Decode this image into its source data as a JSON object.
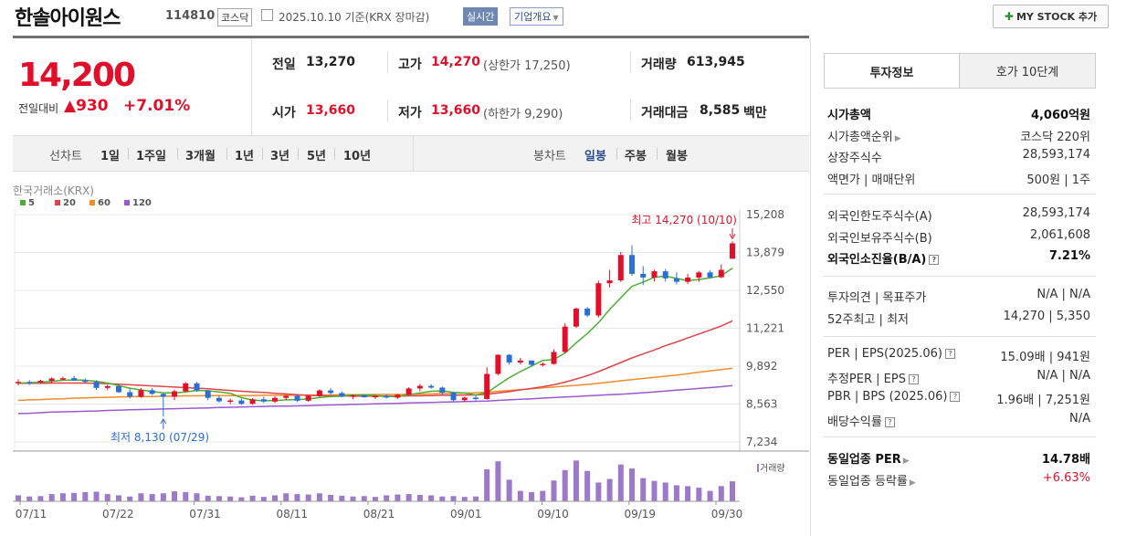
{
  "header": {
    "company": "한솔아이원스",
    "code": "114810",
    "market": "코스닥",
    "date_text": "2025.10.10  기준(KRX 장마감)",
    "realtime": "실시간",
    "overview": "기업개요",
    "mystock": "MY STOCK 추가"
  },
  "price": {
    "current": "14,200",
    "change_label": "전일대비",
    "change_value": "▲930",
    "change_pct": "+7.01%"
  },
  "quote": {
    "prev_label": "전일",
    "prev": "13,270",
    "high_label": "고가",
    "high": "14,270",
    "upper_limit": "(상한가 17,250)",
    "volume_label": "거래량",
    "volume": "613,945",
    "open_label": "시가",
    "open": "13,660",
    "low_label": "저가",
    "low": "13,660",
    "lower_limit": "(하한가 9,290)",
    "amount_label": "거래대금",
    "amount": "8,585",
    "amount_unit": "백만"
  },
  "period_bar": {
    "line_label": "선차트",
    "line_items": [
      "1일",
      "1주일",
      "3개월",
      "1년",
      "3년",
      "5년",
      "10년"
    ],
    "candle_label": "봉차트",
    "candle_items": [
      "일봉",
      "주봉",
      "월봉"
    ],
    "candle_active": "일봉"
  },
  "chart_data": {
    "type": "candlestick",
    "source": "한국거래소(KRX)",
    "legend": [
      "5",
      "20",
      "60",
      "120"
    ],
    "legend_colors": [
      "#4caf32",
      "#e2434b",
      "#f08c2a",
      "#9b59d0"
    ],
    "ylim": [
      7234,
      15208
    ],
    "y_ticks": [
      "15,208",
      "13,879",
      "12,550",
      "11,221",
      "9,892",
      "8,563",
      "7,234"
    ],
    "x_ticks": [
      "07/11",
      "07/22",
      "07/31",
      "08/11",
      "08/21",
      "09/01",
      "09/10",
      "09/19",
      "09/30"
    ],
    "max_label": "최고 14,270 (10/10)",
    "min_label": "최저 8,130 (07/29)",
    "volume_label": "거래량",
    "up_color": "#e0102b",
    "down_color": "#2a6fd6",
    "candles": [
      [
        9290,
        9430,
        9220,
        9340
      ],
      [
        9340,
        9400,
        9230,
        9330
      ],
      [
        9330,
        9420,
        9280,
        9380
      ],
      [
        9380,
        9500,
        9300,
        9460
      ],
      [
        9460,
        9520,
        9400,
        9470
      ],
      [
        9470,
        9550,
        9380,
        9390
      ],
      [
        9390,
        9460,
        9320,
        9340
      ],
      [
        9340,
        9400,
        9060,
        9130
      ],
      [
        9130,
        9240,
        9050,
        9190
      ],
      [
        9190,
        9260,
        8950,
        8980
      ],
      [
        8980,
        9110,
        8760,
        8820
      ],
      [
        8820,
        9130,
        8780,
        9050
      ],
      [
        9050,
        9120,
        8880,
        8920
      ],
      [
        8920,
        8950,
        8130,
        8820
      ],
      [
        8820,
        9070,
        8700,
        9010
      ],
      [
        9010,
        9330,
        8980,
        9290
      ],
      [
        9290,
        9340,
        8990,
        9040
      ],
      [
        9040,
        9050,
        8700,
        8780
      ],
      [
        8780,
        8850,
        8610,
        8660
      ],
      [
        8660,
        8760,
        8560,
        8690
      ],
      [
        8690,
        8760,
        8530,
        8570
      ],
      [
        8570,
        8770,
        8540,
        8730
      ],
      [
        8730,
        8820,
        8600,
        8650
      ],
      [
        8650,
        8830,
        8600,
        8780
      ],
      [
        8780,
        8880,
        8700,
        8850
      ],
      [
        8850,
        8900,
        8630,
        8680
      ],
      [
        8680,
        8880,
        8640,
        8850
      ],
      [
        8850,
        9080,
        8810,
        9040
      ],
      [
        9040,
        9120,
        8900,
        8950
      ],
      [
        8950,
        9000,
        8800,
        8830
      ],
      [
        8830,
        8900,
        8730,
        8870
      ],
      [
        8870,
        8910,
        8790,
        8800
      ],
      [
        8800,
        8880,
        8740,
        8850
      ],
      [
        8850,
        8900,
        8760,
        8790
      ],
      [
        8790,
        8920,
        8740,
        8890
      ],
      [
        8890,
        9150,
        8850,
        9110
      ],
      [
        9110,
        9270,
        9010,
        9200
      ],
      [
        9200,
        9260,
        9100,
        9140
      ],
      [
        9140,
        9180,
        8880,
        8960
      ],
      [
        8960,
        9000,
        8650,
        8700
      ],
      [
        8700,
        8820,
        8640,
        8790
      ],
      [
        8790,
        8850,
        8690,
        8740
      ],
      [
        8740,
        9850,
        8720,
        9620
      ],
      [
        9620,
        10310,
        9580,
        10290
      ],
      [
        10290,
        10310,
        9940,
        10020
      ],
      [
        10020,
        10180,
        9950,
        10090
      ],
      [
        10090,
        10100,
        9880,
        9940
      ],
      [
        9940,
        10020,
        9880,
        9970
      ],
      [
        9970,
        10480,
        9950,
        10390
      ],
      [
        10390,
        11400,
        10340,
        11280
      ],
      [
        11280,
        11950,
        11230,
        11910
      ],
      [
        11910,
        11970,
        11620,
        11670
      ],
      [
        11670,
        12890,
        11600,
        12800
      ],
      [
        12800,
        13270,
        12650,
        12900
      ],
      [
        12900,
        13900,
        12840,
        13790
      ],
      [
        13790,
        14130,
        13060,
        13130
      ],
      [
        13130,
        13400,
        12730,
        13000
      ],
      [
        13000,
        13280,
        12860,
        13220
      ],
      [
        13220,
        13300,
        12860,
        12970
      ],
      [
        12970,
        13180,
        12760,
        12850
      ],
      [
        12850,
        13130,
        12780,
        13000
      ],
      [
        13000,
        13230,
        12850,
        13180
      ],
      [
        13180,
        13260,
        12960,
        13010
      ],
      [
        13010,
        13460,
        12980,
        13270
      ],
      [
        13660,
        14270,
        13660,
        14200
      ]
    ],
    "ma5": [
      9300,
      9310,
      9330,
      9360,
      9400,
      9410,
      9400,
      9360,
      9300,
      9210,
      9120,
      9060,
      9000,
      8960,
      8950,
      8990,
      9040,
      9030,
      8990,
      8940,
      8790,
      8700,
      8680,
      8680,
      8710,
      8720,
      8740,
      8790,
      8830,
      8840,
      8880,
      8890,
      8860,
      8830,
      8830,
      8890,
      8950,
      9010,
      9030,
      8970,
      8950,
      8880,
      8960,
      9230,
      9490,
      9700,
      9900,
      10090,
      10130,
      10350,
      10710,
      11040,
      11420,
      11880,
      12290,
      12690,
      12840,
      13010,
      13050,
      12970,
      12890,
      12930,
      12990,
      13060,
      13330
    ],
    "ma20": [
      9290,
      9290,
      9290,
      9300,
      9300,
      9300,
      9300,
      9290,
      9280,
      9260,
      9240,
      9220,
      9200,
      9180,
      9160,
      9140,
      9120,
      9100,
      9070,
      9040,
      9010,
      8990,
      8970,
      8940,
      8920,
      8890,
      8870,
      8860,
      8850,
      8850,
      8840,
      8840,
      8840,
      8840,
      8840,
      8850,
      8850,
      8860,
      8870,
      8870,
      8880,
      8880,
      8910,
      8950,
      9000,
      9060,
      9110,
      9170,
      9240,
      9330,
      9440,
      9560,
      9700,
      9860,
      10020,
      10180,
      10320,
      10460,
      10610,
      10740,
      10880,
      11020,
      11160,
      11300,
      11480
    ],
    "ma60": [
      8690,
      8710,
      8720,
      8740,
      8750,
      8770,
      8780,
      8790,
      8800,
      8810,
      8820,
      8830,
      8830,
      8840,
      8840,
      8850,
      8850,
      8860,
      8860,
      8860,
      8860,
      8860,
      8870,
      8870,
      8870,
      8870,
      8880,
      8880,
      8880,
      8890,
      8890,
      8890,
      8900,
      8900,
      8900,
      8910,
      8910,
      8920,
      8930,
      8940,
      8950,
      8960,
      8980,
      9010,
      9040,
      9070,
      9100,
      9130,
      9160,
      9190,
      9220,
      9250,
      9290,
      9330,
      9380,
      9420,
      9460,
      9500,
      9540,
      9580,
      9630,
      9680,
      9730,
      9770,
      9820
    ],
    "ma120": [
      8230,
      8240,
      8260,
      8280,
      8290,
      8300,
      8310,
      8320,
      8340,
      8350,
      8360,
      8370,
      8380,
      8390,
      8400,
      8410,
      8420,
      8430,
      8440,
      8450,
      8460,
      8470,
      8480,
      8490,
      8490,
      8500,
      8510,
      8520,
      8530,
      8540,
      8550,
      8560,
      8570,
      8580,
      8590,
      8600,
      8610,
      8620,
      8630,
      8640,
      8650,
      8660,
      8670,
      8690,
      8710,
      8730,
      8750,
      8770,
      8790,
      8810,
      8830,
      8850,
      8870,
      8890,
      8910,
      8930,
      8960,
      8990,
      9020,
      9050,
      9080,
      9110,
      9140,
      9170,
      9210
    ],
    "volume": [
      150,
      120,
      130,
      180,
      200,
      210,
      230,
      240,
      180,
      150,
      120,
      200,
      180,
      200,
      250,
      230,
      200,
      140,
      130,
      120,
      100,
      140,
      110,
      150,
      200,
      180,
      170,
      200,
      160,
      140,
      120,
      130,
      110,
      150,
      170,
      180,
      160,
      150,
      120,
      130,
      110,
      120,
      800,
      1000,
      540,
      260,
      230,
      260,
      520,
      780,
      1020,
      760,
      470,
      560,
      920,
      820,
      580,
      510,
      470,
      400,
      380,
      340,
      260,
      380,
      500
    ],
    "volume_max": 1050
  },
  "right_panel": {
    "tabs": [
      "투자정보",
      "호가 10단계"
    ],
    "group1": [
      {
        "k": "시가총액",
        "v": "4,060억원",
        "bold": true
      },
      {
        "k": "시가총액순위",
        "v": "코스닥 220위",
        "arrow": true
      },
      {
        "k": "상장주식수",
        "v": "28,593,174"
      },
      {
        "k": "액면가 | 매매단위",
        "v": "500원 | 1주"
      }
    ],
    "group2": [
      {
        "k": "외국인한도주식수(A)",
        "v": "28,593,174"
      },
      {
        "k": "외국인보유주식수(B)",
        "v": "2,061,608"
      },
      {
        "k": "외국인소진율(B/A)",
        "v": "7.21%",
        "bold": true,
        "q": true
      }
    ],
    "group3": [
      {
        "k": "투자의견 | 목표주가",
        "v": "N/A | N/A"
      },
      {
        "k": "52주최고 | 최저",
        "v": "14,270 | 5,350"
      }
    ],
    "group4": [
      {
        "k": "PER | EPS(2025.06)",
        "v": "15.09배 | 941원",
        "q": true
      },
      {
        "k": "추정PER | EPS",
        "v": "N/A | N/A",
        "q": true
      },
      {
        "k": "PBR | BPS (2025.06)",
        "v": "1.96배 | 7,251원",
        "q": true
      },
      {
        "k": "배당수익률",
        "v": "N/A",
        "q": true
      }
    ],
    "group5": [
      {
        "k": "동일업종 PER",
        "v": "14.78배",
        "bold": true,
        "arrow": true
      },
      {
        "k": "동일업종 등락률",
        "v": "+6.63%",
        "arrow": true,
        "red": true
      }
    ]
  }
}
